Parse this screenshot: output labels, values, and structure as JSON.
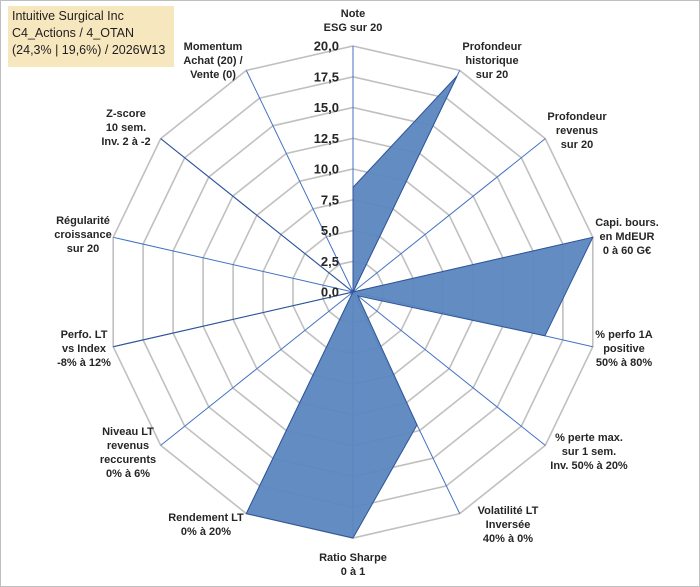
{
  "title_box": {
    "line1": "Intuitive Surgical Inc",
    "line2": "C4_Actions / 4_OTAN",
    "line3": "(24,3% | 19,6%) / 2026W13"
  },
  "colors": {
    "fill": "#5b86bf",
    "stroke": "#2f5597",
    "grid": "#c0c0c0",
    "spoke": "#4472c4",
    "title_bg": "#f7e7bf"
  },
  "chart_data": {
    "type": "radar",
    "r_range": [
      0,
      20
    ],
    "grid": true,
    "tick_labels": [
      "0,0",
      "2,5",
      "5,0",
      "7,5",
      "10,0",
      "12,5",
      "15,0",
      "17,5",
      "20,0"
    ],
    "axes": [
      {
        "lines": [
          "Note",
          "ESG sur 20"
        ]
      },
      {
        "lines": [
          "Profondeur",
          "historique",
          "sur 20"
        ]
      },
      {
        "lines": [
          "Profondeur",
          "revenus",
          "sur 20"
        ]
      },
      {
        "lines": [
          "Capi. bours.",
          "en MdEUR",
          "0 à 60 G€"
        ]
      },
      {
        "lines": [
          "% perfo 1A",
          "positive",
          "50% à 80%"
        ]
      },
      {
        "lines": [
          "% perte max.",
          "sur 1 sem.",
          "Inv. 50% à 20%"
        ]
      },
      {
        "lines": [
          "Volatilité LT",
          "Inversée",
          "40% à 0%"
        ]
      },
      {
        "lines": [
          "Ratio Sharpe",
          "0 à 1"
        ]
      },
      {
        "lines": [
          "Rendement LT",
          "0% à 20%"
        ]
      },
      {
        "lines": [
          "Niveau LT",
          "revenus",
          "reccurents",
          "0% à 6%"
        ]
      },
      {
        "lines": [
          "Perfo. LT",
          "vs Index",
          "-8% à 12%"
        ]
      },
      {
        "lines": [
          "Régularité",
          "croissance",
          "sur 20"
        ]
      },
      {
        "lines": [
          "Z-score",
          "10 sem.",
          "Inv. 2 à -2"
        ]
      },
      {
        "lines": [
          "Momentum",
          "Achat (20) /",
          "Vente (0)"
        ]
      }
    ],
    "series": [
      {
        "name": "Intuitive Surgical Inc",
        "values": [
          8.5,
          19.5,
          0.0,
          20.0,
          16.0,
          0.5,
          12.0,
          20.0,
          20.0,
          0.0,
          20.0,
          0.0,
          20.0,
          0.0
        ]
      }
    ]
  }
}
